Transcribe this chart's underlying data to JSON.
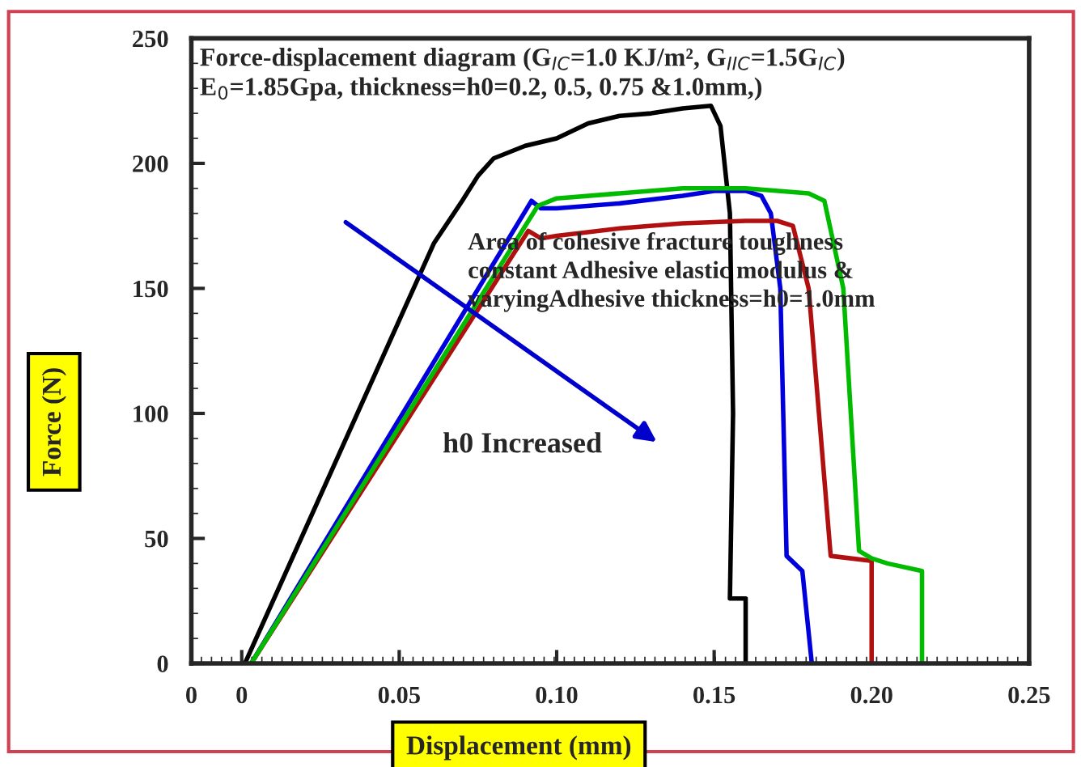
{
  "chart_data": {
    "type": "line",
    "title": "Force-displacement diagram (G$_{IC}$=1.0 KJ/m², G$_{IIC}$=1.5G$_{IC}$)\nE$_{0}$=1.85Gpa, thickness=h0=0.2, 0.5, 0.75 &1.0mm,)",
    "xlabel": "Displacement (mm)",
    "ylabel": "Force (N)",
    "annotations": [
      "Area of cohesive fracture toughness\nconstant Adhesive elastic modulus &\nvaryingAdhesive thickness=h0=1.0mm",
      "h0 Increased"
    ],
    "series": [
      {
        "color": "#000000",
        "x": [
          0.001,
          0.061,
          0.07,
          0.075,
          0.08,
          0.09,
          0.1,
          0.11,
          0.12,
          0.13,
          0.14,
          0.149,
          0.152,
          0.155,
          0.156,
          0.155,
          0.16,
          0.16
        ],
        "values": [
          0,
          168,
          185,
          195,
          202,
          207,
          210,
          216,
          219,
          220,
          222,
          223,
          215,
          180,
          100,
          26,
          26,
          0
        ]
      },
      {
        "color": "#0000dd",
        "x": [
          0.003,
          0.092,
          0.095,
          0.1,
          0.12,
          0.14,
          0.15,
          0.16,
          0.165,
          0.168,
          0.171,
          0.173,
          0.178,
          0.181
        ],
        "values": [
          0,
          185,
          182,
          182,
          184,
          187,
          189,
          189,
          187,
          180,
          150,
          43,
          37,
          0
        ]
      },
      {
        "color": "#b01010",
        "x": [
          0.003,
          0.091,
          0.095,
          0.1,
          0.12,
          0.14,
          0.16,
          0.17,
          0.175,
          0.18,
          0.187,
          0.2,
          0.2,
          0.2
        ],
        "values": [
          0,
          173,
          170,
          171,
          174,
          176,
          177,
          177,
          175,
          150,
          43,
          41,
          41,
          0
        ]
      },
      {
        "color": "#00bb00",
        "x": [
          0.003,
          0.094,
          0.1,
          0.12,
          0.14,
          0.16,
          0.18,
          0.185,
          0.191,
          0.196,
          0.2,
          0.205,
          0.216,
          0.216
        ],
        "values": [
          0,
          183,
          186,
          188,
          190,
          190,
          188,
          185,
          150,
          45,
          42,
          40,
          37,
          0
        ]
      }
    ],
    "xlim": [
      -0.016,
      0.25
    ],
    "xticks": [
      {
        "value": -0.016,
        "label": "0"
      },
      0,
      0.05,
      {
        "value": 0.1,
        "label": "0.10"
      },
      0.15,
      {
        "value": 0.2,
        "label": "0.20"
      },
      0.25
    ],
    "ylim": [
      0,
      250
    ],
    "yticks": [
      0,
      50,
      100,
      150,
      200,
      250
    ],
    "grid": false,
    "line_style": "solid",
    "marker": "none"
  }
}
